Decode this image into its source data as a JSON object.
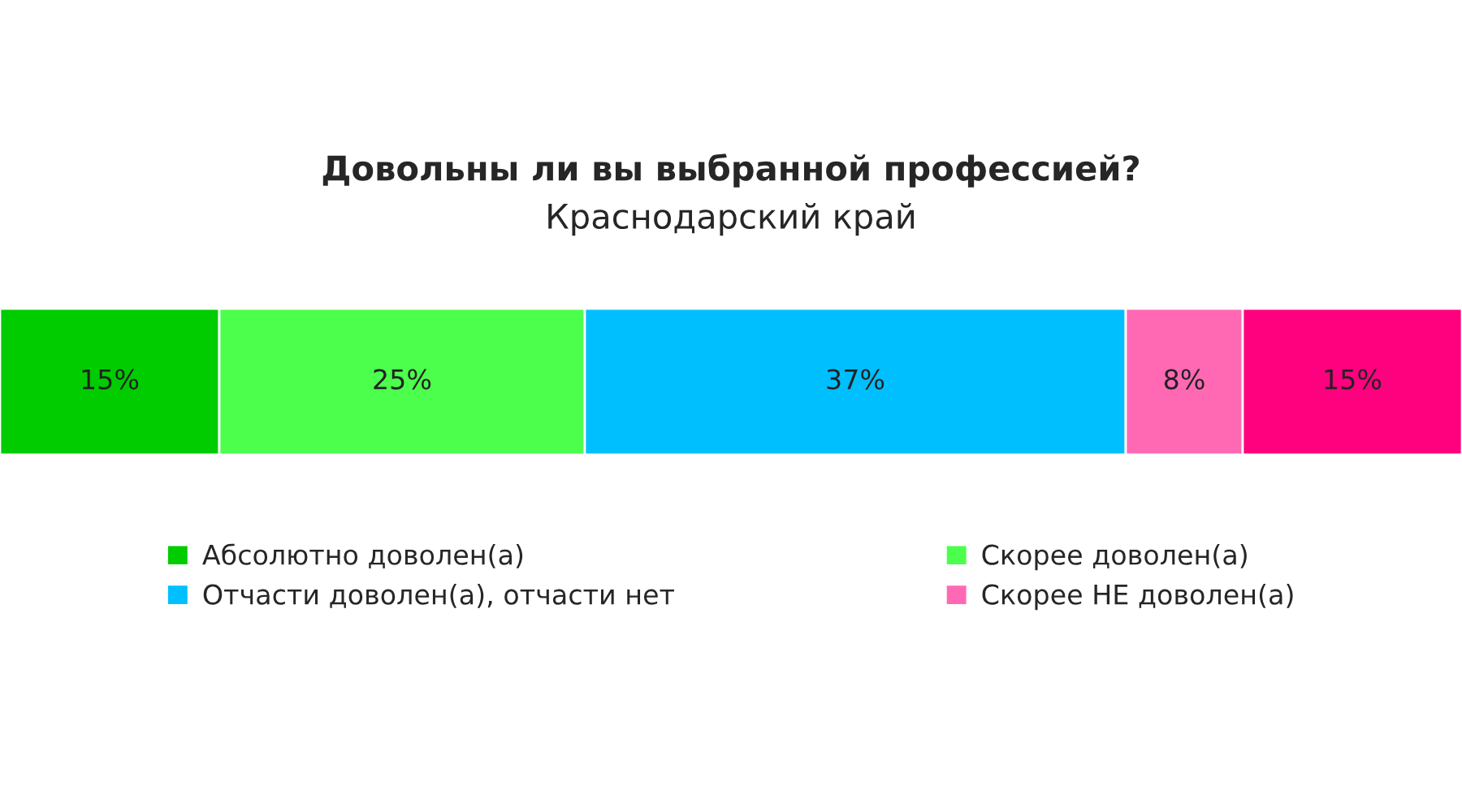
{
  "chart_data": {
    "type": "bar",
    "orientation": "horizontal",
    "stacked": true,
    "title": "Довольны ли вы выбранной профессией?",
    "subtitle": "Краснодарский край",
    "categories": [
      null
    ],
    "tick_labels": false,
    "legend": "bottom",
    "series": [
      {
        "name": "Абсолютно доволен(а)",
        "color": "#00cc00",
        "values": [
          15
        ],
        "value_labels": [
          "15%"
        ]
      },
      {
        "name": "Скорее доволен(а)",
        "color": "#4cff4c",
        "values": [
          25
        ],
        "value_labels": [
          "25%"
        ]
      },
      {
        "name": "Отчасти доволен(а), отчасти нет",
        "color": "#00bfff",
        "values": [
          37
        ],
        "value_labels": [
          "37%"
        ]
      },
      {
        "name": "Скорее НЕ доволен(а)",
        "color": "#ff69b4",
        "values": [
          8
        ],
        "value_labels": [
          "8%"
        ]
      },
      {
        "color": "#ff007f",
        "values": [
          15
        ],
        "value_labels": [
          "15%"
        ]
      }
    ]
  }
}
